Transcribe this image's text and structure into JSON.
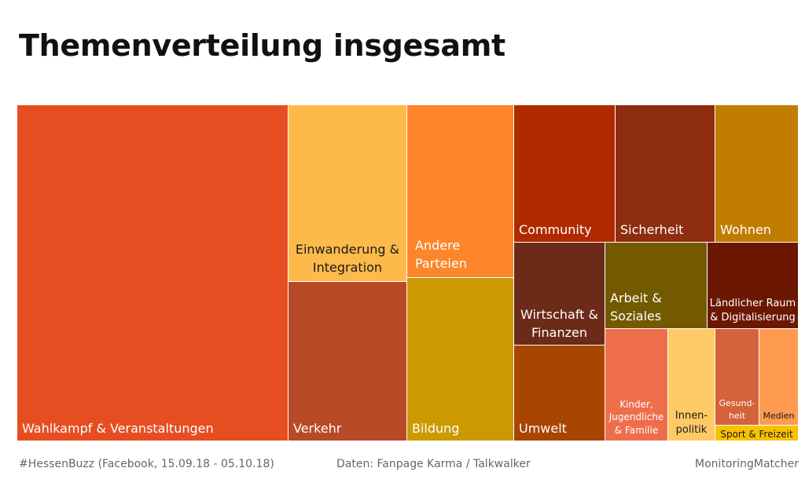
{
  "title": "Themenverteilung insgesamt",
  "footer": {
    "left": "#HessenBuzz (Facebook, 15.09.18 - 05.10.18)",
    "center": "Daten: Fanpage Karma / Talkwalker",
    "right": "MonitoringMatcher"
  },
  "chart_data": {
    "type": "treemap",
    "title": "Themenverteilung insgesamt",
    "items": [
      {
        "label": "Wahlkampf & Veranstaltungen",
        "color": "#e64e22"
      },
      {
        "label": "Einwanderung & Integration",
        "color": "#fdba4a"
      },
      {
        "label": "Verkehr",
        "color": "#b84a27"
      },
      {
        "label": "Andere Parteien",
        "color": "#fd852b"
      },
      {
        "label": "Bildung",
        "color": "#cc9900"
      },
      {
        "label": "Community",
        "color": "#b02a00"
      },
      {
        "label": "Sicherheit",
        "color": "#8e2d10"
      },
      {
        "label": "Wohnen",
        "color": "#c17d00"
      },
      {
        "label": "Wirtschaft & Finanzen",
        "color": "#6c2b19"
      },
      {
        "label": "Umwelt",
        "color": "#a84500"
      },
      {
        "label": "Arbeit & Soziales",
        "color": "#735900"
      },
      {
        "label": "Ländlicher Raum & Digitalisierung",
        "color": "#6b1702"
      },
      {
        "label": "Kinder, Jugendliche & Familie",
        "color": "#ee6e4c"
      },
      {
        "label": "Innen-politik",
        "color": "#ffc966"
      },
      {
        "label": "Gesund-heit",
        "color": "#d4623a"
      },
      {
        "label": "Medien",
        "color": "#ff9b50"
      },
      {
        "label": "Sport & Freizeit",
        "color": "#f7c200"
      }
    ]
  }
}
